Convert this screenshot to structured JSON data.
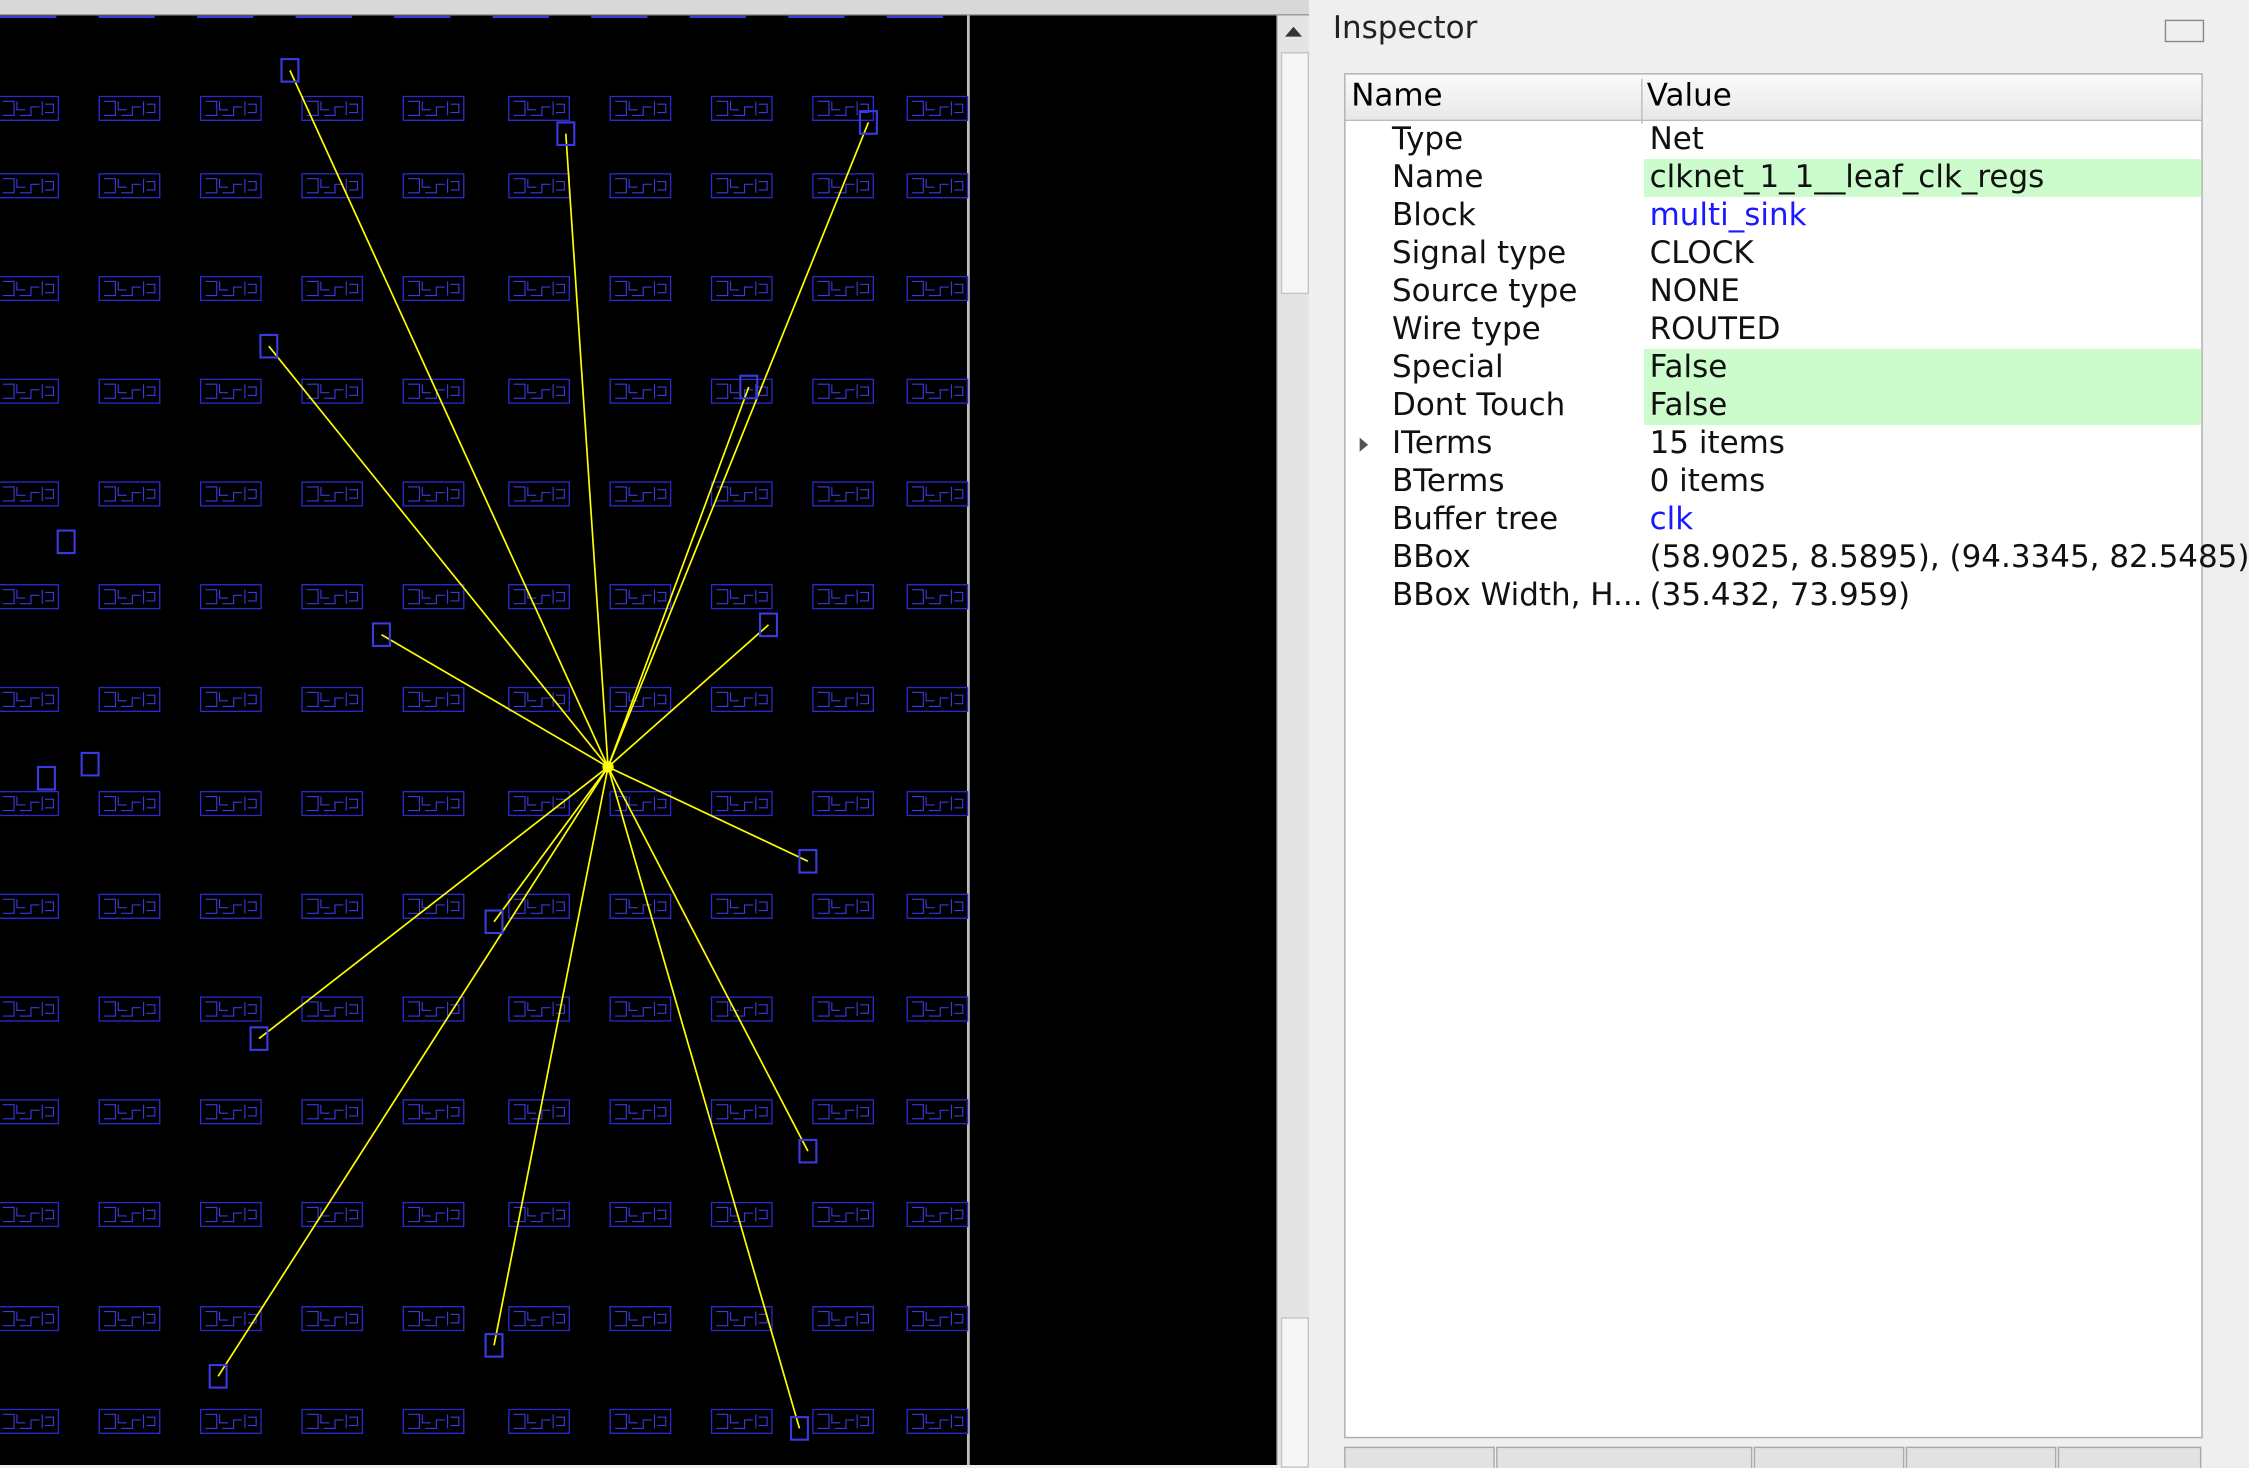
{
  "inspector": {
    "title": "Inspector",
    "columns": [
      "Name",
      "Value"
    ],
    "rows": [
      {
        "name": "Type",
        "value": "Net"
      },
      {
        "name": "Name",
        "value": "clknet_1_1__leaf_clk_regs",
        "background": "#ccfccc"
      },
      {
        "name": "Block",
        "value": "multi_sink",
        "color": "#1a1aff"
      },
      {
        "name": "Signal type",
        "value": "CLOCK"
      },
      {
        "name": "Source type",
        "value": "NONE"
      },
      {
        "name": "Wire type",
        "value": "ROUTED"
      },
      {
        "name": "Special",
        "value": "False",
        "background": "#ccfccc"
      },
      {
        "name": "Dont Touch",
        "value": "False",
        "background": "#ccfccc"
      },
      {
        "name": "ITerms",
        "value": "15 items",
        "expandable": true
      },
      {
        "name": "BTerms",
        "value": "0 items"
      },
      {
        "name": "Buffer tree",
        "value": "clk",
        "color": "#1a1aff"
      },
      {
        "name": "BBox",
        "value": "(58.9025, 8.5895), (94.3345, 82.5485)"
      },
      {
        "name": "BBox Width, H...",
        "value": "(35.432, 73.959)"
      }
    ]
  }
}
